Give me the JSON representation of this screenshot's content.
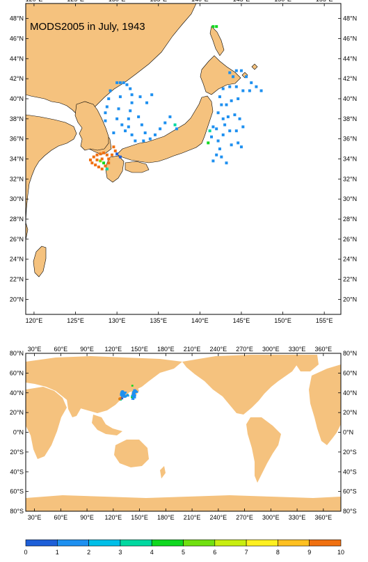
{
  "title": "MODS2005 in July, 1943",
  "colors": {
    "land": "#F5C27E",
    "ocean": "#FFFFFF",
    "frame": "#000000"
  },
  "regional_map": {
    "lon_range": [
      119,
      157
    ],
    "lat_range": [
      18.5,
      49.5
    ],
    "lon_ticks": [
      {
        "v": 120,
        "label": "120°E"
      },
      {
        "v": 125,
        "label": "125°E"
      },
      {
        "v": 130,
        "label": "130°E"
      },
      {
        "v": 135,
        "label": "135°E"
      },
      {
        "v": 140,
        "label": "140°E"
      },
      {
        "v": 145,
        "label": "145°E"
      },
      {
        "v": 150,
        "label": "150°E"
      },
      {
        "v": 155,
        "label": "155°E"
      }
    ],
    "lat_ticks": [
      {
        "v": 20,
        "label": "20°N"
      },
      {
        "v": 22,
        "label": "22°N"
      },
      {
        "v": 24,
        "label": "24°N"
      },
      {
        "v": 26,
        "label": "26°N"
      },
      {
        "v": 28,
        "label": "28°N"
      },
      {
        "v": 30,
        "label": "30°N"
      },
      {
        "v": 32,
        "label": "32°N"
      },
      {
        "v": 34,
        "label": "34°N"
      },
      {
        "v": 36,
        "label": "36°N"
      },
      {
        "v": 38,
        "label": "38°N"
      },
      {
        "v": 40,
        "label": "40°N"
      },
      {
        "v": 42,
        "label": "42°N"
      },
      {
        "v": 44,
        "label": "44°N"
      },
      {
        "v": 46,
        "label": "46°N"
      },
      {
        "v": 48,
        "label": "48°N"
      }
    ]
  },
  "global_map": {
    "lon_range": [
      20,
      380
    ],
    "lat_range": [
      -80,
      80
    ],
    "lon_ticks": [
      {
        "v": 30,
        "label": "30°E"
      },
      {
        "v": 60,
        "label": "60°E"
      },
      {
        "v": 90,
        "label": "90°E"
      },
      {
        "v": 120,
        "label": "120°E"
      },
      {
        "v": 150,
        "label": "150°E"
      },
      {
        "v": 180,
        "label": "180°E"
      },
      {
        "v": 210,
        "label": "210°E"
      },
      {
        "v": 240,
        "label": "240°E"
      },
      {
        "v": 270,
        "label": "270°E"
      },
      {
        "v": 300,
        "label": "300°E"
      },
      {
        "v": 330,
        "label": "330°E"
      },
      {
        "v": 360,
        "label": "360°E"
      }
    ],
    "lat_ticks": [
      {
        "v": -80,
        "label": "80°S"
      },
      {
        "v": -60,
        "label": "60°S"
      },
      {
        "v": -40,
        "label": "40°S"
      },
      {
        "v": -20,
        "label": "20°S"
      },
      {
        "v": 0,
        "label": "0°N"
      },
      {
        "v": 20,
        "label": "20°N"
      },
      {
        "v": 40,
        "label": "40°N"
      },
      {
        "v": 60,
        "label": "60°N"
      },
      {
        "v": 80,
        "label": "80°N"
      }
    ]
  },
  "colorbar": {
    "labels": [
      "0",
      "1",
      "2",
      "3",
      "4",
      "5",
      "6",
      "7",
      "8",
      "9",
      "10"
    ],
    "colors": [
      "#1E5FD8",
      "#1E90F0",
      "#00BFE8",
      "#00D8A0",
      "#10D820",
      "#70E010",
      "#C8EE10",
      "#FFF020",
      "#FFC020",
      "#F07010"
    ]
  },
  "observations": [
    {
      "lon": 127.2,
      "lat": 34.2,
      "v": 9.5
    },
    {
      "lon": 127.6,
      "lat": 34.4,
      "v": 9.5
    },
    {
      "lon": 128.0,
      "lat": 34.5,
      "v": 9.5
    },
    {
      "lon": 128.4,
      "lat": 34.6,
      "v": 9.5
    },
    {
      "lon": 128.8,
      "lat": 34.4,
      "v": 9.5
    },
    {
      "lon": 126.8,
      "lat": 33.9,
      "v": 9.5
    },
    {
      "lon": 127.0,
      "lat": 33.6,
      "v": 9.5
    },
    {
      "lon": 127.4,
      "lat": 33.4,
      "v": 9.5
    },
    {
      "lon": 127.8,
      "lat": 33.2,
      "v": 9.5
    },
    {
      "lon": 128.2,
      "lat": 33.0,
      "v": 9.5
    },
    {
      "lon": 128.6,
      "lat": 33.3,
      "v": 9.5
    },
    {
      "lon": 129.0,
      "lat": 33.6,
      "v": 9.5
    },
    {
      "lon": 127.6,
      "lat": 33.9,
      "v": 9.5
    },
    {
      "lon": 128.0,
      "lat": 33.8,
      "v": 5.5
    },
    {
      "lon": 128.4,
      "lat": 33.6,
      "v": 4.5
    },
    {
      "lon": 128.8,
      "lat": 33.0,
      "v": 3.5
    },
    {
      "lon": 128.2,
      "lat": 34.0,
      "v": 9.5
    },
    {
      "lon": 129.0,
      "lat": 34.0,
      "v": 9.5
    },
    {
      "lon": 129.4,
      "lat": 34.4,
      "v": 9.5
    },
    {
      "lon": 129.6,
      "lat": 35.2,
      "v": 9.5
    },
    {
      "lon": 129.8,
      "lat": 34.8,
      "v": 9.5
    },
    {
      "lon": 130.0,
      "lat": 34.5,
      "v": 0.5
    },
    {
      "lon": 130.4,
      "lat": 34.2,
      "v": 0.5
    },
    {
      "lon": 130.0,
      "lat": 41.6,
      "v": 1.5
    },
    {
      "lon": 130.4,
      "lat": 41.6,
      "v": 1.5
    },
    {
      "lon": 130.8,
      "lat": 41.6,
      "v": 1.5
    },
    {
      "lon": 131.2,
      "lat": 41.4,
      "v": 1.5
    },
    {
      "lon": 131.6,
      "lat": 41.0,
      "v": 1.5
    },
    {
      "lon": 131.8,
      "lat": 40.4,
      "v": 1.5
    },
    {
      "lon": 131.8,
      "lat": 39.6,
      "v": 1.5
    },
    {
      "lon": 131.6,
      "lat": 38.8,
      "v": 1.5
    },
    {
      "lon": 131.4,
      "lat": 38.0,
      "v": 1.5
    },
    {
      "lon": 131.4,
      "lat": 37.2,
      "v": 1.5
    },
    {
      "lon": 131.8,
      "lat": 36.4,
      "v": 1.5
    },
    {
      "lon": 132.2,
      "lat": 35.8,
      "v": 1.5
    },
    {
      "lon": 129.2,
      "lat": 40.8,
      "v": 1.5
    },
    {
      "lon": 129.0,
      "lat": 40.0,
      "v": 1.5
    },
    {
      "lon": 128.8,
      "lat": 39.2,
      "v": 1.5
    },
    {
      "lon": 128.6,
      "lat": 38.6,
      "v": 1.5
    },
    {
      "lon": 130.4,
      "lat": 40.2,
      "v": 1.5
    },
    {
      "lon": 130.2,
      "lat": 39.0,
      "v": 1.5
    },
    {
      "lon": 130.0,
      "lat": 38.0,
      "v": 1.5
    },
    {
      "lon": 130.6,
      "lat": 37.4,
      "v": 1.5
    },
    {
      "lon": 131.0,
      "lat": 36.8,
      "v": 1.5
    },
    {
      "lon": 132.6,
      "lat": 38.2,
      "v": 1.5
    },
    {
      "lon": 133.0,
      "lat": 37.4,
      "v": 1.5
    },
    {
      "lon": 133.4,
      "lat": 36.6,
      "v": 1.5
    },
    {
      "lon": 133.2,
      "lat": 35.8,
      "v": 1.5
    },
    {
      "lon": 134.0,
      "lat": 36.0,
      "v": 1.5
    },
    {
      "lon": 134.6,
      "lat": 36.4,
      "v": 1.5
    },
    {
      "lon": 135.2,
      "lat": 37.0,
      "v": 1.5
    },
    {
      "lon": 135.8,
      "lat": 37.6,
      "v": 1.5
    },
    {
      "lon": 136.4,
      "lat": 38.2,
      "v": 1.5
    },
    {
      "lon": 132.8,
      "lat": 40.2,
      "v": 1.5
    },
    {
      "lon": 133.6,
      "lat": 39.6,
      "v": 1.5
    },
    {
      "lon": 134.2,
      "lat": 40.4,
      "v": 1.5
    },
    {
      "lon": 128.6,
      "lat": 37.8,
      "v": 1.5
    },
    {
      "lon": 129.6,
      "lat": 36.6,
      "v": 1.5
    },
    {
      "lon": 137.0,
      "lat": 37.4,
      "v": 3.5
    },
    {
      "lon": 137.2,
      "lat": 37.0,
      "v": 1.5
    },
    {
      "lon": 143.6,
      "lat": 42.6,
      "v": 1.5
    },
    {
      "lon": 144.0,
      "lat": 42.2,
      "v": 1.5
    },
    {
      "lon": 144.4,
      "lat": 42.8,
      "v": 1.5
    },
    {
      "lon": 145.0,
      "lat": 42.8,
      "v": 1.5
    },
    {
      "lon": 145.6,
      "lat": 42.2,
      "v": 1.5
    },
    {
      "lon": 146.2,
      "lat": 41.6,
      "v": 1.5
    },
    {
      "lon": 146.8,
      "lat": 41.2,
      "v": 1.5
    },
    {
      "lon": 147.4,
      "lat": 40.8,
      "v": 1.5
    },
    {
      "lon": 146.0,
      "lat": 40.8,
      "v": 1.5
    },
    {
      "lon": 145.2,
      "lat": 40.8,
      "v": 1.5
    },
    {
      "lon": 144.4,
      "lat": 41.2,
      "v": 1.5
    },
    {
      "lon": 143.6,
      "lat": 41.2,
      "v": 1.5
    },
    {
      "lon": 142.8,
      "lat": 41.0,
      "v": 1.5
    },
    {
      "lon": 142.4,
      "lat": 40.2,
      "v": 1.5
    },
    {
      "lon": 142.6,
      "lat": 39.4,
      "v": 1.5
    },
    {
      "lon": 143.2,
      "lat": 39.4,
      "v": 1.5
    },
    {
      "lon": 143.8,
      "lat": 39.8,
      "v": 1.5
    },
    {
      "lon": 144.6,
      "lat": 40.0,
      "v": 1.5
    },
    {
      "lon": 142.2,
      "lat": 38.6,
      "v": 1.5
    },
    {
      "lon": 142.8,
      "lat": 38.0,
      "v": 1.5
    },
    {
      "lon": 143.4,
      "lat": 38.2,
      "v": 1.5
    },
    {
      "lon": 144.2,
      "lat": 38.4,
      "v": 1.5
    },
    {
      "lon": 144.8,
      "lat": 38.0,
      "v": 1.5
    },
    {
      "lon": 145.2,
      "lat": 37.2,
      "v": 1.5
    },
    {
      "lon": 144.4,
      "lat": 36.8,
      "v": 1.5
    },
    {
      "lon": 143.6,
      "lat": 36.8,
      "v": 1.5
    },
    {
      "lon": 142.8,
      "lat": 36.4,
      "v": 1.5
    },
    {
      "lon": 142.2,
      "lat": 35.8,
      "v": 1.5
    },
    {
      "lon": 142.4,
      "lat": 35.0,
      "v": 1.5
    },
    {
      "lon": 142.0,
      "lat": 34.4,
      "v": 1.5
    },
    {
      "lon": 141.6,
      "lat": 33.8,
      "v": 1.5
    },
    {
      "lon": 142.6,
      "lat": 34.2,
      "v": 1.5
    },
    {
      "lon": 143.2,
      "lat": 33.6,
      "v": 1.5
    },
    {
      "lon": 143.8,
      "lat": 35.4,
      "v": 1.5
    },
    {
      "lon": 144.6,
      "lat": 35.6,
      "v": 1.5
    },
    {
      "lon": 145.0,
      "lat": 35.2,
      "v": 1.5
    },
    {
      "lon": 141.4,
      "lat": 36.2,
      "v": 1.5
    },
    {
      "lon": 141.0,
      "lat": 35.6,
      "v": 4.5
    },
    {
      "lon": 141.2,
      "lat": 36.8,
      "v": 3.5
    },
    {
      "lon": 141.6,
      "lat": 37.2,
      "v": 1.5
    },
    {
      "lon": 142.0,
      "lat": 37.0,
      "v": 1.5
    },
    {
      "lon": 143.0,
      "lat": 37.4,
      "v": 1.5
    },
    {
      "lon": 141.6,
      "lat": 47.2,
      "v": 4.5
    },
    {
      "lon": 142.0,
      "lat": 47.2,
      "v": 4.5
    }
  ]
}
